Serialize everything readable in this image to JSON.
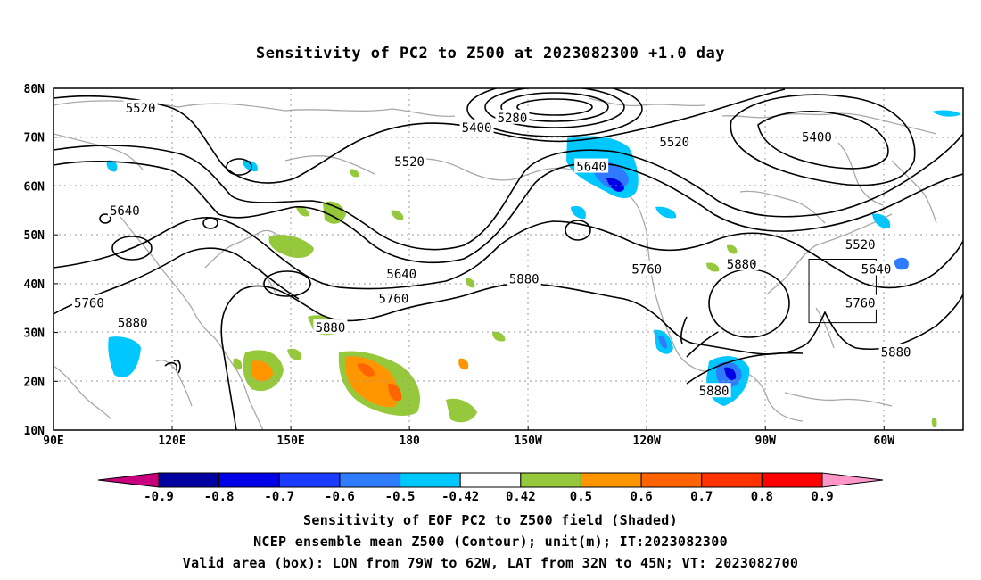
{
  "title": "Sensitivity of PC2 to Z500 at 2023082300 +1.0 day",
  "map": {
    "lat_ticks": [
      "80N",
      "70N",
      "60N",
      "50N",
      "40N",
      "30N",
      "20N",
      "10N"
    ],
    "lon_ticks": [
      "90E",
      "120E",
      "150E",
      "180",
      "150W",
      "120W",
      "90W",
      "60W"
    ],
    "lon_tick_values": [
      90,
      120,
      150,
      180,
      210,
      240,
      270,
      300
    ],
    "lat_tick_values": [
      80,
      70,
      60,
      50,
      40,
      30,
      20,
      10
    ],
    "extent": {
      "lon_min": 90,
      "lon_max": 320,
      "lat_min": 10,
      "lat_max": 80
    },
    "grid": true,
    "contour_labels": [
      {
        "text": "5520",
        "lon": 112,
        "lat": 76
      },
      {
        "text": "5280",
        "lon": 206,
        "lat": 74
      },
      {
        "text": "5400",
        "lon": 197,
        "lat": 72
      },
      {
        "text": "5520",
        "lon": 247,
        "lat": 69
      },
      {
        "text": "5400",
        "lon": 283,
        "lat": 70
      },
      {
        "text": "5520",
        "lon": 180,
        "lat": 65
      },
      {
        "text": "5640",
        "lon": 226,
        "lat": 64
      },
      {
        "text": "5640",
        "lon": 108,
        "lat": 55
      },
      {
        "text": "5520",
        "lon": 294,
        "lat": 48
      },
      {
        "text": "5640",
        "lon": 178,
        "lat": 42
      },
      {
        "text": "5760",
        "lon": 240,
        "lat": 43
      },
      {
        "text": "5880",
        "lon": 264,
        "lat": 44
      },
      {
        "text": "5640",
        "lon": 298,
        "lat": 43
      },
      {
        "text": "5880",
        "lon": 209,
        "lat": 41
      },
      {
        "text": "5760",
        "lon": 176,
        "lat": 37
      },
      {
        "text": "5760",
        "lon": 99,
        "lat": 36
      },
      {
        "text": "5760",
        "lon": 294,
        "lat": 36
      },
      {
        "text": "5880",
        "lon": 110,
        "lat": 32
      },
      {
        "text": "5880",
        "lon": 160,
        "lat": 31
      },
      {
        "text": "5880",
        "lon": 303,
        "lat": 26
      },
      {
        "text": "5880",
        "lon": 257,
        "lat": 18
      }
    ],
    "valid_box": {
      "lon_min": 281,
      "lon_max": 298,
      "lat_min": 32,
      "lat_max": 45
    }
  },
  "colorbar": {
    "labels": [
      "-0.9",
      "-0.8",
      "-0.7",
      "-0.6",
      "-0.5",
      "-0.42",
      "0.42",
      "0.5",
      "0.6",
      "0.7",
      "0.8",
      "0.9"
    ],
    "colors": [
      "#0000a0",
      "#0000e8",
      "#1b3cff",
      "#2e7bff",
      "#00c8ff",
      "#ffffff",
      "#96c83c",
      "#ff9600",
      "#ff6400",
      "#ff3200",
      "#ff0000"
    ],
    "low_cap_color": "#c8007d",
    "high_cap_color": "#ff96c8"
  },
  "captions": {
    "line1": "Sensitivity of EOF PC2 to Z500 field (Shaded)",
    "line2": "NCEP ensemble mean Z500 (Contour); unit(m); IT:2023082300",
    "line3": "Valid area (box): LON from 79W to 62W, LAT from 32N to 45N; VT: 2023082700"
  }
}
